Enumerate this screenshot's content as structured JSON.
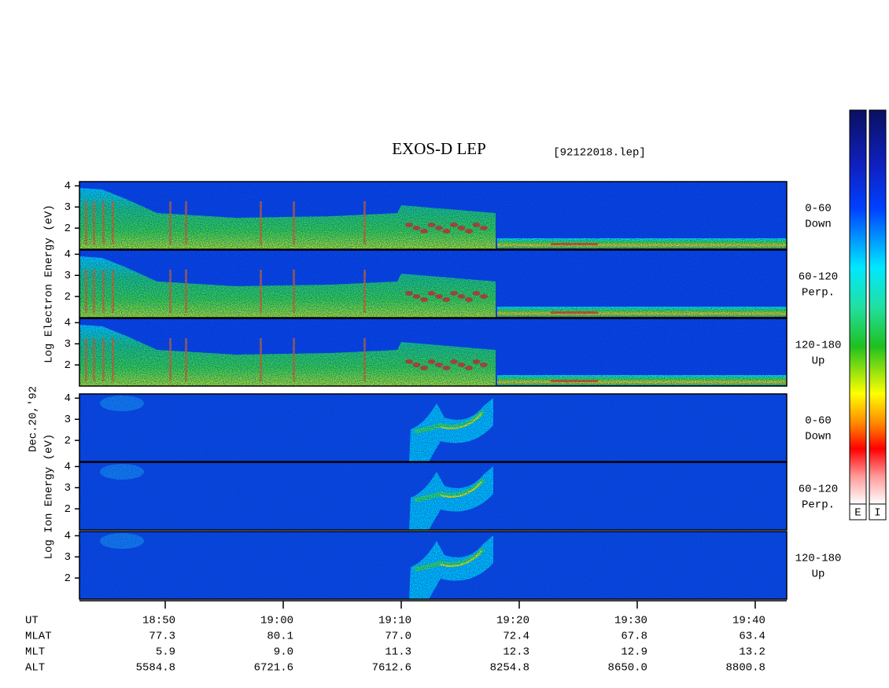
{
  "chart_data": {
    "type": "spectrogram",
    "title": "EXOS-D LEP",
    "subtitle": "[92122018.lep]",
    "date": "Dec.20,'92",
    "groups": [
      {
        "label": "Log Electron Energy (eV)",
        "panels": [
          {
            "pitch": "0-60",
            "direction": "Down"
          },
          {
            "pitch": "60-120",
            "direction": "Perp."
          },
          {
            "pitch": "120-180",
            "direction": "Up"
          }
        ]
      },
      {
        "label": "Log Ion Energy (eV)",
        "panels": [
          {
            "pitch": "0-60",
            "direction": "Down"
          },
          {
            "pitch": "60-120",
            "direction": "Perp."
          },
          {
            "pitch": "120-180",
            "direction": "Up"
          }
        ]
      }
    ],
    "ylim": [
      1,
      4.2
    ],
    "yticks": [
      2,
      3,
      4
    ],
    "xlim": [
      1122.73,
      1182.67
    ],
    "xticks": [
      {
        "value": 1130,
        "label": "18:50"
      },
      {
        "value": 1140,
        "label": "19:00"
      },
      {
        "value": 1150,
        "label": "19:10"
      },
      {
        "value": 1160,
        "label": "19:20"
      },
      {
        "value": 1170,
        "label": "19:30"
      },
      {
        "value": 1180,
        "label": "19:40"
      }
    ],
    "ephemeris": [
      {
        "name": "UT"
      },
      {
        "name": "MLAT",
        "values": [
          "77.3",
          "80.1",
          "77.0",
          "72.4",
          "67.8",
          "63.4"
        ]
      },
      {
        "name": "MLT",
        "values": [
          "5.9",
          "9.0",
          "11.3",
          "12.3",
          "12.9",
          "13.2"
        ]
      },
      {
        "name": "ALT",
        "values": [
          "5584.8",
          "6721.6",
          "7612.6",
          "8254.8",
          "8650.0",
          "8800.8"
        ]
      }
    ],
    "colorbar_labels": [
      "E",
      "I"
    ]
  }
}
